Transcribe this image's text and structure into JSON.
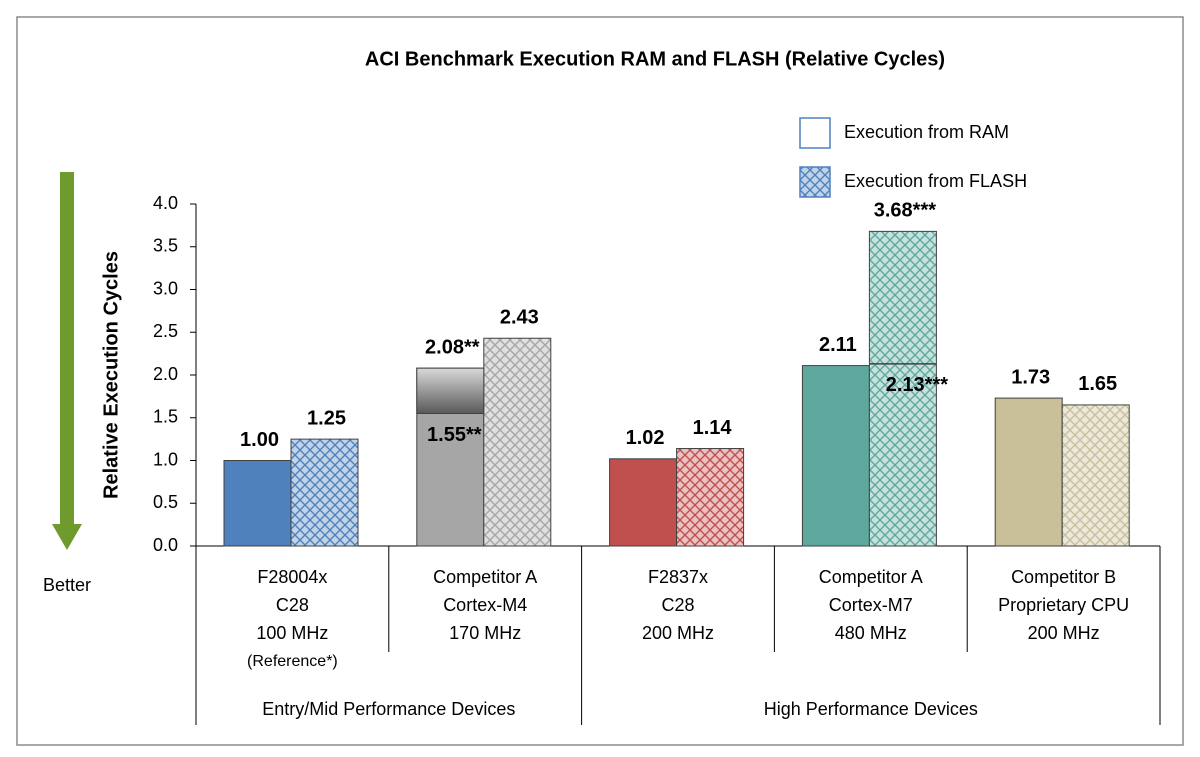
{
  "chart_data": {
    "type": "bar",
    "title": "ACI Benchmark Execution RAM and FLASH (Relative Cycles)",
    "y_label": "Relative Execution Cycles",
    "annotation": "Better",
    "categories": [
      [
        "F28004x",
        "C28",
        "100 MHz",
        "(Reference*)"
      ],
      [
        "Competitor A",
        "Cortex-M4",
        "170 MHz"
      ],
      [
        "F2837x",
        "C28",
        "200 MHz"
      ],
      [
        "Competitor A",
        "Cortex-M7",
        "480 MHz"
      ],
      [
        "Competitor B",
        "Proprietary CPU",
        "200 MHz"
      ]
    ],
    "groups": [
      {
        "label": "Entry/Mid Performance Devices",
        "first": 0,
        "last": 1
      },
      {
        "label": "High Performance Devices",
        "first": 2,
        "last": 4
      }
    ],
    "series": [
      {
        "name": "Execution from RAM",
        "pattern": "solid",
        "colors": [
          "#4f81bd",
          "#a6a6a6",
          "#c0504d",
          "#5fa89e",
          "#c9bf99"
        ],
        "values": [
          1.0,
          2.08,
          1.02,
          2.11,
          1.73
        ],
        "value_labels": [
          "1.00",
          "2.08**",
          "1.02",
          "2.11",
          "1.73"
        ]
      },
      {
        "name": "Execution from FLASH",
        "pattern": "crosshatch",
        "colors": [
          "#4f81bd",
          "#a6a6a6",
          "#c0504d",
          "#5fa89e",
          "#c9bf99"
        ],
        "values": [
          1.25,
          2.43,
          1.14,
          3.68,
          1.65
        ],
        "value_labels": [
          "1.25",
          "2.43",
          "1.14",
          "3.68***",
          "1.65"
        ]
      }
    ],
    "markers": [
      {
        "category": 1,
        "series": 0,
        "value": 1.55,
        "label": "1.55**"
      },
      {
        "category": 3,
        "series": 1,
        "value": 2.13,
        "label": "2.13***"
      }
    ],
    "ylim": [
      0,
      4
    ],
    "yticks": [
      {
        "value": 0,
        "label": "0.0"
      },
      0.5,
      {
        "value": 1,
        "label": "1.0"
      },
      1.5,
      {
        "value": 2,
        "label": "2.0"
      },
      2.5,
      {
        "value": 3,
        "label": "3.0"
      },
      3.5,
      {
        "value": 4,
        "label": "4.0"
      }
    ],
    "grid": false,
    "legend": "top-right"
  }
}
